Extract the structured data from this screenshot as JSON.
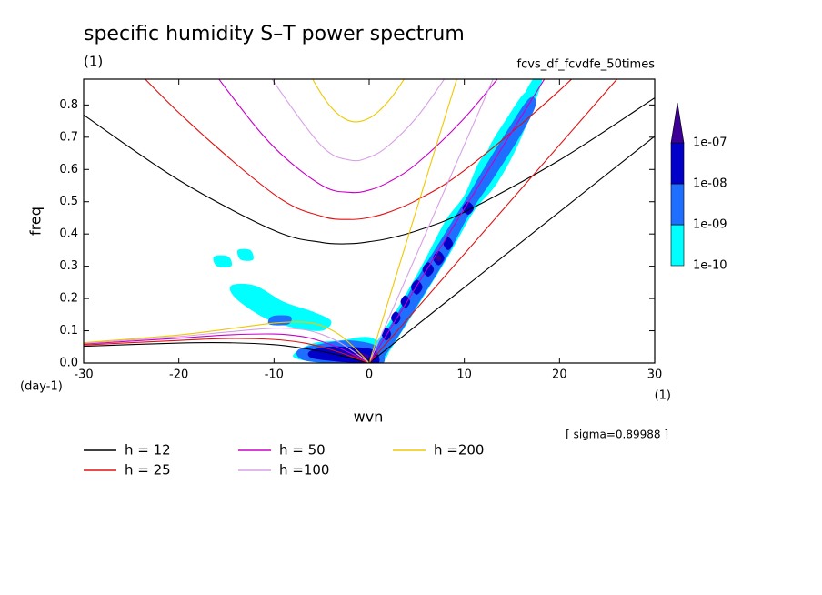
{
  "chart_data": {
    "type": "contour",
    "title": "specific humidity S–T power spectrum",
    "subtitle": "(1)",
    "annotation": "fcvs_df_fcvdfe_50times",
    "xlabel": "wvn",
    "ylabel": "freq",
    "x_unit": "(1)",
    "y_unit": "(day-1)",
    "note": "[ sigma=0.89988 ]",
    "xlim": [
      -30,
      30
    ],
    "ylim": [
      0,
      0.88
    ],
    "xticks": [
      -30,
      -20,
      -10,
      0,
      10,
      20,
      30
    ],
    "yticks": [
      {
        "value": 0,
        "label": "0.0"
      },
      0.1,
      0.2,
      0.3,
      0.4,
      0.5,
      0.6,
      0.7,
      0.8
    ],
    "colorbar": {
      "levels": [
        1e-10,
        {
          "value": 1e-09,
          "label": "1e-09"
        },
        {
          "value": 1e-08,
          "label": "1e-08"
        },
        {
          "value": 1e-07,
          "label": "1e-07"
        }
      ],
      "colors": [
        "#00ffff",
        "#1e6eff",
        "#0000c8",
        "#3c0096"
      ]
    },
    "shading": [
      {
        "min": 1e-10,
        "x": [
          0,
          1.2,
          3.5,
          6,
          8.5,
          11,
          13.5,
          16,
          18.2,
          17.2,
          15,
          13,
          11.5,
          10,
          8,
          5.5,
          2.8,
          0.3
        ],
        "y": [
          0.0,
          0.0,
          0.1,
          0.22,
          0.34,
          0.47,
          0.56,
          0.7,
          0.88,
          0.88,
          0.76,
          0.68,
          0.62,
          0.52,
          0.44,
          0.3,
          0.16,
          0.04
        ]
      },
      {
        "min": 1e-10,
        "x": [
          13,
          15,
          17,
          16.5,
          14.5,
          12.5
        ],
        "y": [
          0.62,
          0.68,
          0.78,
          0.84,
          0.76,
          0.66
        ]
      },
      {
        "min": 1e-10,
        "x": [
          -8,
          -5,
          -2,
          1,
          2,
          0,
          -3,
          -6
        ],
        "y": [
          0.02,
          0.0,
          0.0,
          0.0,
          0.04,
          0.08,
          0.07,
          0.06
        ]
      },
      {
        "min": 1e-10,
        "x": [
          -14,
          -11,
          -8,
          -5,
          -4,
          -6,
          -9,
          -12,
          -14.5
        ],
        "y": [
          0.2,
          0.14,
          0.11,
          0.1,
          0.13,
          0.16,
          0.19,
          0.24,
          0.24
        ]
      },
      {
        "min": 1e-10,
        "x": [
          -16,
          -14.5,
          -14.8,
          -16.3
        ],
        "y": [
          0.3,
          0.3,
          0.33,
          0.33
        ]
      },
      {
        "min": 1e-10,
        "x": [
          -13.5,
          -12.2,
          -12.5,
          -13.8
        ],
        "y": [
          0.32,
          0.32,
          0.35,
          0.35
        ]
      },
      {
        "min": 1e-09,
        "x": [
          0,
          1,
          3,
          5.5,
          8,
          10.5,
          13,
          16,
          17.5,
          16.8,
          14.5,
          12,
          10,
          7.5,
          5,
          2.5,
          0.2
        ],
        "y": [
          0,
          0,
          0.08,
          0.2,
          0.32,
          0.46,
          0.57,
          0.71,
          0.8,
          0.82,
          0.72,
          0.6,
          0.5,
          0.38,
          0.26,
          0.13,
          0.03
        ]
      },
      {
        "min": 1e-09,
        "x": [
          -7,
          -4,
          -1,
          1.5,
          1,
          -2,
          -5,
          -7.5
        ],
        "y": [
          0.01,
          0.0,
          0.0,
          0.0,
          0.05,
          0.07,
          0.06,
          0.04
        ]
      },
      {
        "min": 1e-09,
        "x": [
          -10.5,
          -8.5,
          -8.3,
          -10.2
        ],
        "y": [
          0.12,
          0.12,
          0.145,
          0.145
        ]
      },
      {
        "min": 1e-08,
        "x": [
          -6,
          -3.5,
          -1,
          1,
          0.5,
          -2,
          -4.5,
          -6.3
        ],
        "y": [
          0.015,
          0.005,
          0.0,
          0.0,
          0.04,
          0.05,
          0.05,
          0.035
        ]
      },
      {
        "min": 1e-08,
        "x": [
          1.3,
          1.8,
          2.3,
          1.8
        ],
        "y": [
          0.09,
          0.07,
          0.09,
          0.11
        ]
      },
      {
        "min": 1e-08,
        "x": [
          2.3,
          2.8,
          3.3,
          2.8
        ],
        "y": [
          0.14,
          0.12,
          0.14,
          0.16
        ]
      },
      {
        "min": 1e-08,
        "x": [
          3.3,
          3.8,
          4.3,
          3.8
        ],
        "y": [
          0.19,
          0.17,
          0.19,
          0.21
        ]
      },
      {
        "min": 1e-08,
        "x": [
          4.4,
          5,
          5.6,
          5
        ],
        "y": [
          0.235,
          0.212,
          0.235,
          0.258
        ]
      },
      {
        "min": 1e-08,
        "x": [
          5.6,
          6.2,
          6.8,
          6.2
        ],
        "y": [
          0.29,
          0.268,
          0.29,
          0.312
        ]
      },
      {
        "min": 1e-08,
        "x": [
          6.7,
          7.3,
          7.9,
          7.3
        ],
        "y": [
          0.325,
          0.303,
          0.325,
          0.347
        ]
      },
      {
        "min": 1e-08,
        "x": [
          7.8,
          8.3,
          8.8,
          8.3
        ],
        "y": [
          0.37,
          0.35,
          0.37,
          0.39
        ]
      },
      {
        "min": 1e-08,
        "x": [
          9.8,
          10.4,
          11,
          10.4
        ],
        "y": [
          0.48,
          0.46,
          0.48,
          0.5
        ]
      },
      {
        "min": 1e-07,
        "x": [
          -2,
          -1,
          0,
          -1
        ],
        "y": [
          0.02,
          0.008,
          0.02,
          0.032
        ]
      },
      {
        "min": 1e-07,
        "x": [
          7,
          7.3,
          7.6,
          7.3
        ],
        "y": [
          0.325,
          0.315,
          0.325,
          0.335
        ]
      }
    ],
    "series": [
      {
        "name": "h = 12",
        "color": "#000000",
        "curves": [
          {
            "x": [
              -30,
              -20,
              -10,
              -5,
              -2,
              0,
              2,
              5,
              10,
              20,
              30
            ],
            "values": [
              0.769,
              0.567,
              0.411,
              0.374,
              0.37,
              0.376,
              0.386,
              0.41,
              0.468,
              0.629,
              0.822
            ]
          },
          {
            "x": [
              0,
              30
            ],
            "values": [
              0,
              0.703
            ]
          },
          {
            "x": [
              -30,
              -20,
              -15,
              -10,
              -7,
              -5,
              -3,
              -1,
              0
            ],
            "values": [
              0.052,
              0.062,
              0.063,
              0.057,
              0.046,
              0.036,
              0.023,
              0.008,
              0
            ]
          }
        ]
      },
      {
        "name": "h = 25",
        "color": "#e01010",
        "curves": [
          {
            "x": [
              -30,
              -20,
              -10,
              -5,
              -2,
              0,
              2,
              5,
              10,
              20,
              30
            ],
            "values": [
              1.081,
              0.776,
              0.523,
              0.455,
              0.445,
              0.451,
              0.467,
              0.505,
              0.597,
              0.845,
              1.136
            ]
          },
          {
            "x": [
              0,
              30
            ],
            "values": [
              0,
              1.014
            ]
          },
          {
            "x": [
              -30,
              -20,
              -15,
              -10,
              -7,
              -5,
              -3,
              -1,
              0
            ],
            "values": [
              0.056,
              0.07,
              0.076,
              0.073,
              0.063,
              0.05,
              0.032,
              0.011,
              0
            ]
          }
        ]
      },
      {
        "name": "h = 50",
        "color": "#c800c8",
        "curves": [
          {
            "x": [
              -20,
              -15,
              -10,
              -5,
              -2,
              0,
              2,
              5,
              10,
              15
            ],
            "values": [
              1.056,
              0.849,
              0.669,
              0.551,
              0.529,
              0.536,
              0.56,
              0.618,
              0.759,
              0.936
            ]
          },
          {
            "x": [
              0,
              20
            ],
            "values": [
              0,
              0.956
            ]
          },
          {
            "x": [
              -30,
              -20,
              -15,
              -10,
              -7,
              -5,
              -3,
              -1,
              0
            ],
            "values": [
              0.059,
              0.077,
              0.087,
              0.09,
              0.082,
              0.067,
              0.045,
              0.016,
              0
            ]
          }
        ]
      },
      {
        "name": "h =100",
        "color": "#d7a0e6",
        "curves": [
          {
            "x": [
              -12,
              -10,
              -5,
              -2,
              0,
              2,
              5,
              8,
              10
            ],
            "values": [
              0.976,
              0.871,
              0.673,
              0.629,
              0.638,
              0.673,
              0.762,
              0.885,
              0.979
            ]
          },
          {
            "x": [
              0,
              15
            ],
            "values": [
              0,
              1.014
            ]
          },
          {
            "x": [
              -30,
              -20,
              -15,
              -10,
              -7,
              -5,
              -3,
              -1,
              0
            ],
            "values": [
              0.061,
              0.082,
              0.096,
              0.108,
              0.104,
              0.089,
              0.062,
              0.022,
              0
            ]
          }
        ]
      },
      {
        "name": "h =200",
        "color": "#f0c800",
        "curves": [
          {
            "x": [
              -8,
              -6,
              -4,
              -2,
              0,
              2,
              4,
              6
            ],
            "values": [
              1.007,
              0.883,
              0.793,
              0.75,
              0.759,
              0.811,
              0.896,
              1.007
            ]
          },
          {
            "x": [
              0,
              10
            ],
            "values": [
              0,
              0.956
            ]
          },
          {
            "x": [
              -30,
              -20,
              -15,
              -10,
              -7,
              -5,
              -3,
              -1,
              0
            ],
            "values": [
              0.063,
              0.087,
              0.105,
              0.124,
              0.127,
              0.116,
              0.085,
              0.031,
              0
            ]
          }
        ]
      }
    ]
  }
}
